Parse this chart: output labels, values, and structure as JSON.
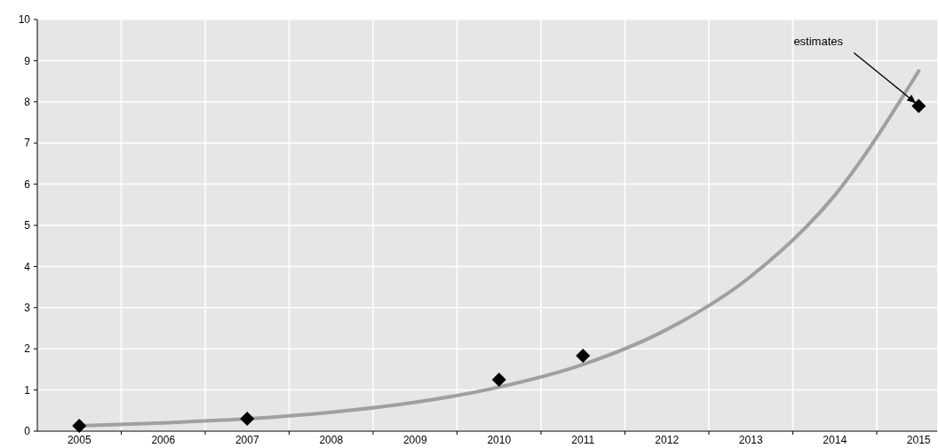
{
  "chart_data": {
    "type": "scatter",
    "categories": [
      "2005",
      "2006",
      "2007",
      "2008",
      "2009",
      "2010",
      "2011",
      "2012",
      "2013",
      "2014",
      "2015"
    ],
    "series": [
      {
        "type": "line",
        "color": "#a0a0a0",
        "marker": "none",
        "line_style": "solid",
        "values": [
          0.13,
          0.2,
          0.3,
          0.46,
          0.7,
          1.07,
          1.62,
          2.47,
          3.76,
          5.73,
          8.75
        ]
      },
      {
        "color": "#000000",
        "marker": "diamond",
        "values": [
          0.13,
          null,
          0.3,
          null,
          null,
          1.25,
          1.83,
          null,
          null,
          null,
          7.9
        ]
      }
    ],
    "ylim": [
      0,
      10
    ],
    "yticks": [
      0,
      1,
      2,
      3,
      4,
      5,
      6,
      7,
      8,
      9,
      10
    ],
    "grid": true,
    "annotations": [
      {
        "text": "estimates",
        "x": "2015",
        "y": 7.9
      }
    ]
  }
}
